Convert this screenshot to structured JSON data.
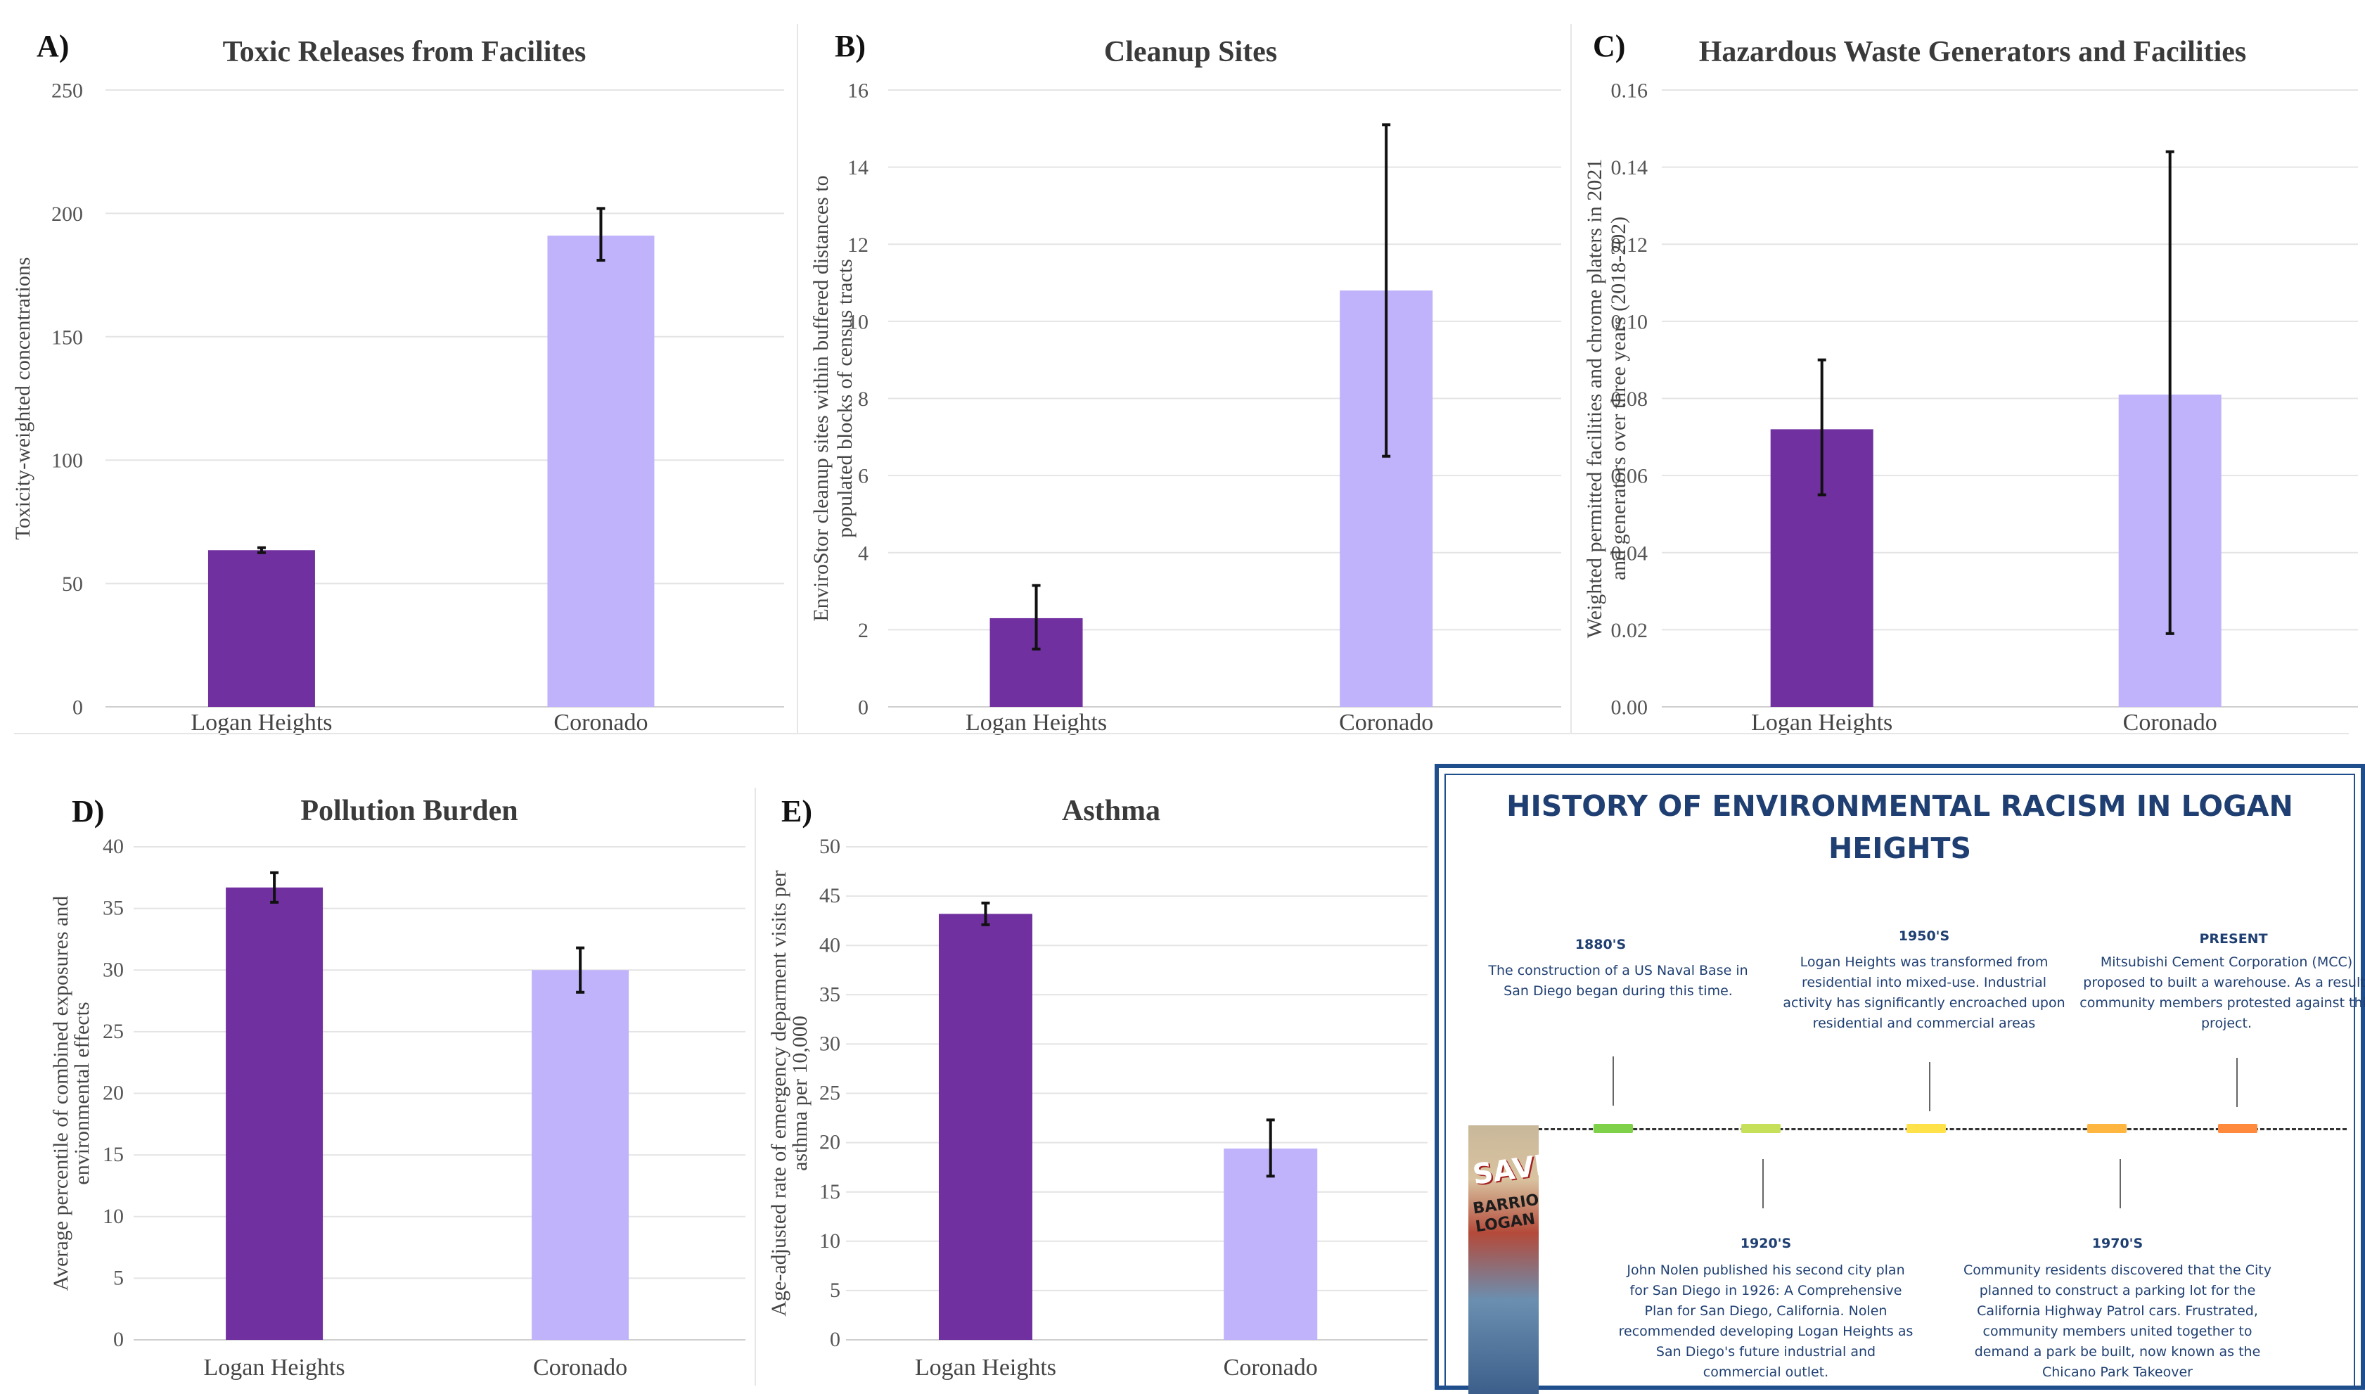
{
  "chart_data": [
    {
      "id": "A",
      "type": "bar",
      "panel_letter": "A)",
      "title": "Toxic Releases from Facilites",
      "ylabel": [
        "Toxicity-weighted concentrations"
      ],
      "categories": [
        "Logan Heights",
        "Coronado"
      ],
      "values": [
        63.5,
        191
      ],
      "errors": [
        [
          62.5,
          64.5
        ],
        [
          181,
          202
        ]
      ],
      "colors": [
        "#7030a0",
        "#c0b3fb"
      ],
      "ylim": [
        0,
        250
      ],
      "yticks": [
        "0",
        "50",
        "100",
        "150",
        "200",
        "250"
      ],
      "grid": true
    },
    {
      "id": "B",
      "type": "bar",
      "panel_letter": "B)",
      "title": "Cleanup Sites",
      "ylabel": [
        "EnviroStor cleanup sites within buffered distances to",
        "populated blocks of census tracts"
      ],
      "categories": [
        "Logan Heights",
        "Coronado"
      ],
      "values": [
        2.3,
        10.8
      ],
      "errors": [
        [
          1.5,
          3.15
        ],
        [
          6.5,
          15.1
        ]
      ],
      "colors": [
        "#7030a0",
        "#c0b3fb"
      ],
      "ylim": [
        0,
        16
      ],
      "yticks": [
        "0",
        "2",
        "4",
        "6",
        "8",
        "10",
        "12",
        "14",
        "16"
      ],
      "grid": true
    },
    {
      "id": "C",
      "type": "bar",
      "panel_letter": "C)",
      "title": "Hazardous Waste Generators and Facilities",
      "ylabel": [
        "Weighted permitted facilities and chrome platers in 2021",
        "and generators over three years (2018-202)"
      ],
      "categories": [
        "Logan Heights",
        "Coronado"
      ],
      "values": [
        0.072,
        0.081
      ],
      "errors": [
        [
          0.055,
          0.09
        ],
        [
          0.019,
          0.144
        ]
      ],
      "colors": [
        "#7030a0",
        "#c0b3fb"
      ],
      "ylim": [
        0,
        0.16
      ],
      "yticks": [
        "0.00",
        "0.02",
        "0.04",
        "0.06",
        "0.08",
        "0.10",
        "0.12",
        "0.14",
        "0.16"
      ],
      "grid": true
    },
    {
      "id": "D",
      "type": "bar",
      "panel_letter": "D)",
      "title": "Pollution Burden",
      "ylabel": [
        "Average percentile of combined exposures and",
        "environmental effects"
      ],
      "categories": [
        "Logan Heights",
        "Coronado"
      ],
      "values": [
        36.7,
        30
      ],
      "errors": [
        [
          35.5,
          37.9
        ],
        [
          28.2,
          31.8
        ]
      ],
      "colors": [
        "#7030a0",
        "#c0b3fb"
      ],
      "ylim": [
        0,
        40
      ],
      "yticks": [
        "0",
        "5",
        "10",
        "15",
        "20",
        "25",
        "30",
        "35",
        "40"
      ],
      "grid": true
    },
    {
      "id": "E",
      "type": "bar",
      "panel_letter": "E)",
      "title": "Asthma",
      "ylabel": [
        "Age-adjusted rate  of emergency deparment visits per",
        "asthma per 10,000"
      ],
      "categories": [
        "Logan Heights",
        "Coronado"
      ],
      "values": [
        43.2,
        19.4
      ],
      "errors": [
        [
          42.1,
          44.3
        ],
        [
          16.6,
          22.3
        ]
      ],
      "colors": [
        "#7030a0",
        "#c0b3fb"
      ],
      "ylim": [
        0,
        50
      ],
      "yticks": [
        "0",
        "5",
        "10",
        "15",
        "20",
        "25",
        "30",
        "35",
        "40",
        "45",
        "50"
      ],
      "grid": true
    }
  ],
  "timeline": {
    "title": "HISTORY OF ENVIRONMENTAL RACISM IN LOGAN HEIGHTS",
    "mural_text": "SAVE",
    "mural_subtext": "BARRIO LOGAN",
    "events": [
      {
        "era": "1880'S",
        "text": "The construction of a US Naval Base in San Diego began during this time.",
        "color": "#7fd14a"
      },
      {
        "era": "1920'S",
        "text": "John Nolen published his second city plan for San Diego in 1926: A Comprehensive Plan for San Diego, California. Nolen recommended developing Logan Heights as San Diego's future industrial and commercial outlet.",
        "color": "#c6e05a"
      },
      {
        "era": "1950'S",
        "text": "Logan Heights was transformed from residential into mixed-use. Industrial activity has significantly encroached upon residential and commercial areas",
        "color": "#ffe24a"
      },
      {
        "era": "1970'S",
        "text": "Community residents discovered that the City planned to construct a parking lot for the California Highway Patrol cars. Frustrated, community members united together to demand a park be built, now known as the Chicano Park Takeover",
        "color": "#ffb640"
      },
      {
        "era": "PRESENT",
        "text": "Mitsubishi Cement Corporation (MCC) proposed to built a warehouse. As a result, community members protested against this project.",
        "color": "#ff8a3d"
      }
    ]
  }
}
